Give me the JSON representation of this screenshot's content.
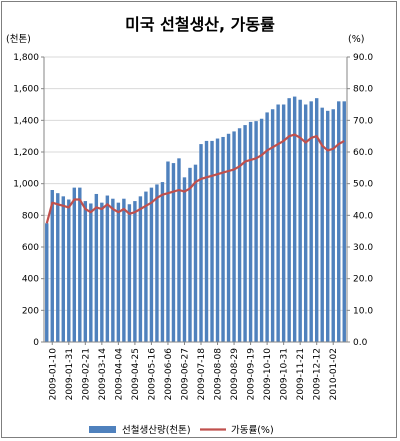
{
  "chart_data": {
    "type": "bar",
    "title": "미국 선철생산, 가동률",
    "y_left_unit": "(천톤)",
    "y_right_unit": "(%)",
    "ylim_left": [
      0,
      1800
    ],
    "ylim_right": [
      0,
      90
    ],
    "yticks_left": [
      "0",
      "200",
      "400",
      "600",
      "800",
      "1,000",
      "1,200",
      "1,400",
      "1,600",
      "1,800"
    ],
    "yticks_right": [
      "0.0",
      "10.0",
      "20.0",
      "30.0",
      "40.0",
      "50.0",
      "60.0",
      "70.0",
      "80.0",
      "90.0"
    ],
    "x_labels": [
      "2009-01-10",
      "2009-01-31",
      "2009-02-21",
      "2009-03-14",
      "2009-04-04",
      "2009-04-25",
      "2009-05-16",
      "2009-06-06",
      "2009-06-27",
      "2009-07-18",
      "2009-08-08",
      "2009-08-29",
      "2009-09-19",
      "2009-10-10",
      "2009-10-31",
      "2009-11-21",
      "2009-12-12",
      "2010-01-02"
    ],
    "categories": [
      "2009-01-03",
      "2009-01-10",
      "2009-01-17",
      "2009-01-24",
      "2009-01-31",
      "2009-02-07",
      "2009-02-14",
      "2009-02-21",
      "2009-02-28",
      "2009-03-07",
      "2009-03-14",
      "2009-03-21",
      "2009-03-28",
      "2009-04-04",
      "2009-04-11",
      "2009-04-18",
      "2009-04-25",
      "2009-05-02",
      "2009-05-09",
      "2009-05-16",
      "2009-05-23",
      "2009-05-30",
      "2009-06-06",
      "2009-06-13",
      "2009-06-20",
      "2009-06-27",
      "2009-07-04",
      "2009-07-11",
      "2009-07-18",
      "2009-07-25",
      "2009-08-01",
      "2009-08-08",
      "2009-08-15",
      "2009-08-22",
      "2009-08-29",
      "2009-09-05",
      "2009-09-12",
      "2009-09-19",
      "2009-09-26",
      "2009-10-03",
      "2009-10-10",
      "2009-10-17",
      "2009-10-24",
      "2009-10-31",
      "2009-11-07",
      "2009-11-14",
      "2009-11-21",
      "2009-11-28",
      "2009-12-05",
      "2009-12-12",
      "2009-12-19",
      "2009-12-26",
      "2010-01-02",
      "2010-01-09",
      "2010-01-16"
    ],
    "series": [
      {
        "name": "선철생산량(천톤)",
        "axis": "left",
        "type": "bar",
        "color": "#4f81bd",
        "values": [
          750,
          960,
          940,
          920,
          900,
          975,
          975,
          890,
          875,
          935,
          880,
          925,
          905,
          880,
          905,
          870,
          890,
          920,
          950,
          975,
          995,
          1010,
          1140,
          1130,
          1160,
          1040,
          1100,
          1120,
          1250,
          1270,
          1270,
          1285,
          1295,
          1315,
          1330,
          1350,
          1370,
          1390,
          1395,
          1410,
          1450,
          1470,
          1500,
          1500,
          1540,
          1550,
          1530,
          1500,
          1520,
          1540,
          1480,
          1460,
          1470,
          1520,
          1520
        ]
      },
      {
        "name": "가동률(%)",
        "axis": "right",
        "type": "line",
        "color": "#c0504d",
        "values": [
          37.5,
          44.0,
          43.5,
          43.0,
          42.5,
          45.0,
          45.0,
          42.0,
          41.0,
          42.5,
          42.0,
          43.5,
          42.0,
          41.0,
          42.0,
          40.5,
          41.0,
          42.0,
          43.0,
          44.0,
          45.5,
          46.5,
          47.0,
          47.5,
          48.0,
          47.5,
          48.5,
          50.5,
          51.5,
          52.0,
          52.5,
          53.0,
          53.5,
          54.0,
          54.5,
          55.5,
          57.0,
          57.5,
          58.0,
          59.0,
          60.5,
          61.5,
          62.5,
          63.5,
          65.0,
          65.5,
          64.5,
          63.0,
          64.5,
          65.0,
          62.0,
          60.5,
          61.0,
          62.5,
          63.5
        ]
      }
    ],
    "legend_position": "bottom"
  }
}
